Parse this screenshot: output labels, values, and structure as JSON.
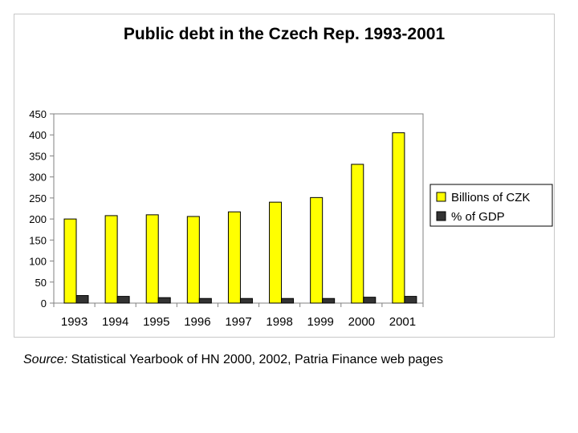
{
  "chart_data": {
    "type": "bar",
    "title": "Public debt in the Czech Rep. 1993-2001",
    "categories": [
      "1993",
      "1994",
      "1995",
      "1996",
      "1997",
      "1998",
      "1999",
      "2000",
      "2001"
    ],
    "series": [
      {
        "name": "Billions of CZK",
        "color": "#ffff00",
        "values": [
          200,
          208,
          210,
          206,
          217,
          240,
          251,
          330,
          405
        ]
      },
      {
        "name": "% of GDP",
        "color": "#333333",
        "values": [
          18,
          16,
          13,
          11,
          11,
          11,
          11,
          14,
          16
        ]
      }
    ],
    "ylim": [
      0,
      450
    ],
    "yticks": [
      "0",
      "50",
      "100",
      "150",
      "200",
      "250",
      "300",
      "350",
      "400",
      "450"
    ],
    "xlabel": "",
    "ylabel": "",
    "grid": false,
    "legend": "right"
  },
  "source": {
    "label": "Source:",
    "text": " Statistical Yearbook of HN 2000, 2002, Patria Finance web pages"
  }
}
